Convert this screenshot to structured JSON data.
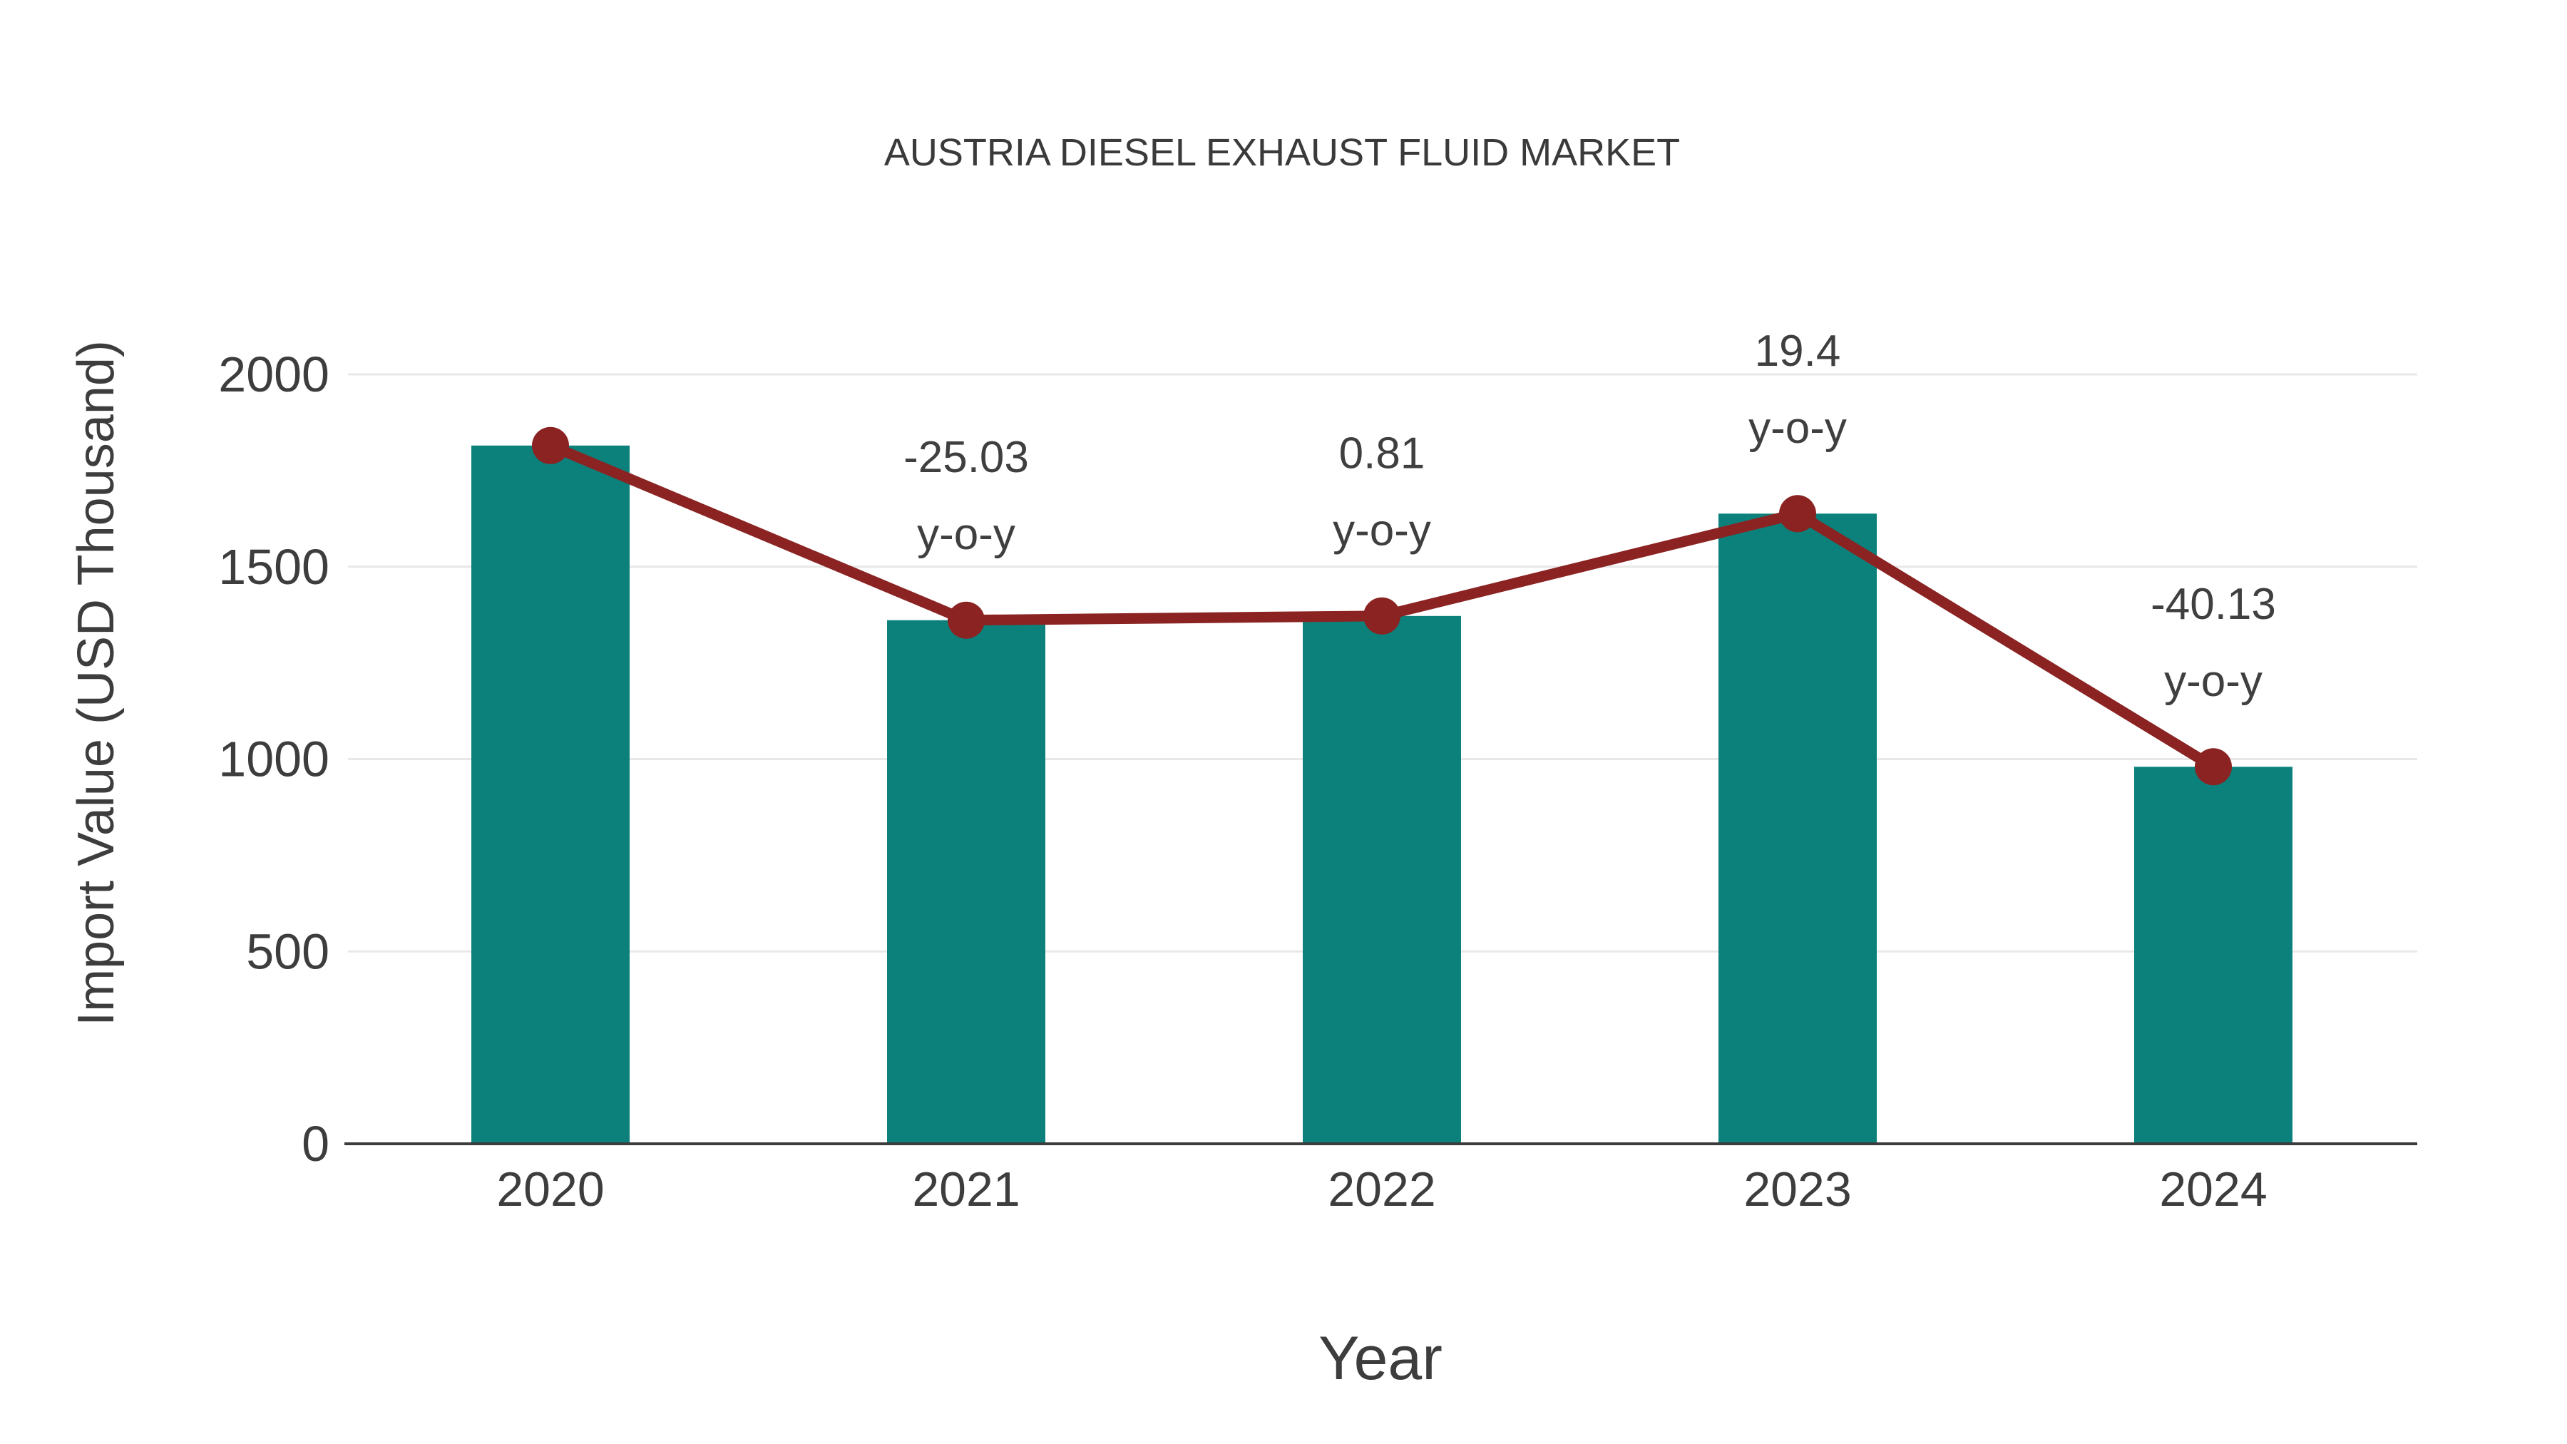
{
  "chart_data": {
    "type": "bar",
    "title": "AUSTRIA DIESEL EXHAUST FLUID MARKET",
    "xlabel": "Year",
    "ylabel": "Import Value (USD Thousand)",
    "categories": [
      "2020",
      "2021",
      "2022",
      "2023",
      "2024"
    ],
    "series": [
      {
        "name": "import-value-bars",
        "type": "bar",
        "values": [
          1815,
          1361,
          1372,
          1638,
          980
        ]
      },
      {
        "name": "import-value-trend",
        "type": "line",
        "values": [
          1815,
          1361,
          1372,
          1638,
          980
        ]
      }
    ],
    "annotations": [
      {
        "category": "2021",
        "line1": "-25.03",
        "line2": "y-o-y"
      },
      {
        "category": "2022",
        "line1": "0.81",
        "line2": "y-o-y"
      },
      {
        "category": "2023",
        "line1": "19.4",
        "line2": "y-o-y"
      },
      {
        "category": "2024",
        "line1": "-40.13",
        "line2": "y-o-y"
      }
    ],
    "yticks": [
      0,
      500,
      1000,
      1500,
      2000
    ],
    "ylim": [
      0,
      2100
    ],
    "grid": true,
    "legend": false,
    "colors": {
      "bar": "#0c817b",
      "line": "#8a2322",
      "marker": "#8a2322",
      "grid": "#e8e8e8",
      "axis": "#3c3c3c",
      "text": "#3d3d3d",
      "title": "#3a3a3a"
    }
  }
}
